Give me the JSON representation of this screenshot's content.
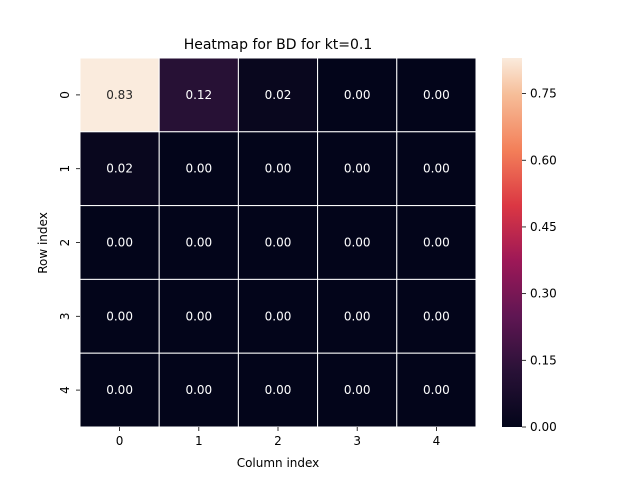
{
  "chart_data": {
    "type": "heatmap",
    "title": "Heatmap for BD for kt=0.1",
    "xlabel": "Column index",
    "ylabel": "Row index",
    "x_categories": [
      "0",
      "1",
      "2",
      "3",
      "4"
    ],
    "y_categories": [
      "0",
      "1",
      "2",
      "3",
      "4"
    ],
    "values": [
      [
        0.83,
        0.12,
        0.02,
        0.0,
        0.0
      ],
      [
        0.02,
        0.0,
        0.0,
        0.0,
        0.0
      ],
      [
        0.0,
        0.0,
        0.0,
        0.0,
        0.0
      ],
      [
        0.0,
        0.0,
        0.0,
        0.0,
        0.0
      ],
      [
        0.0,
        0.0,
        0.0,
        0.0,
        0.0
      ]
    ],
    "annotations": [
      [
        "0.83",
        "0.12",
        "0.02",
        "0.00",
        "0.00"
      ],
      [
        "0.02",
        "0.00",
        "0.00",
        "0.00",
        "0.00"
      ],
      [
        "0.00",
        "0.00",
        "0.00",
        "0.00",
        "0.00"
      ],
      [
        "0.00",
        "0.00",
        "0.00",
        "0.00",
        "0.00"
      ],
      [
        "0.00",
        "0.00",
        "0.00",
        "0.00",
        "0.00"
      ]
    ],
    "colorbar": {
      "vmin": 0.0,
      "vmax": 0.83,
      "ticks": [
        0.0,
        0.15,
        0.3,
        0.45,
        0.6,
        0.75
      ],
      "tick_labels": [
        "0.00",
        "0.15",
        "0.30",
        "0.45",
        "0.60",
        "0.75"
      ]
    },
    "colormap": "rocket",
    "grid": false,
    "cell_border_color": "#ffffff"
  }
}
